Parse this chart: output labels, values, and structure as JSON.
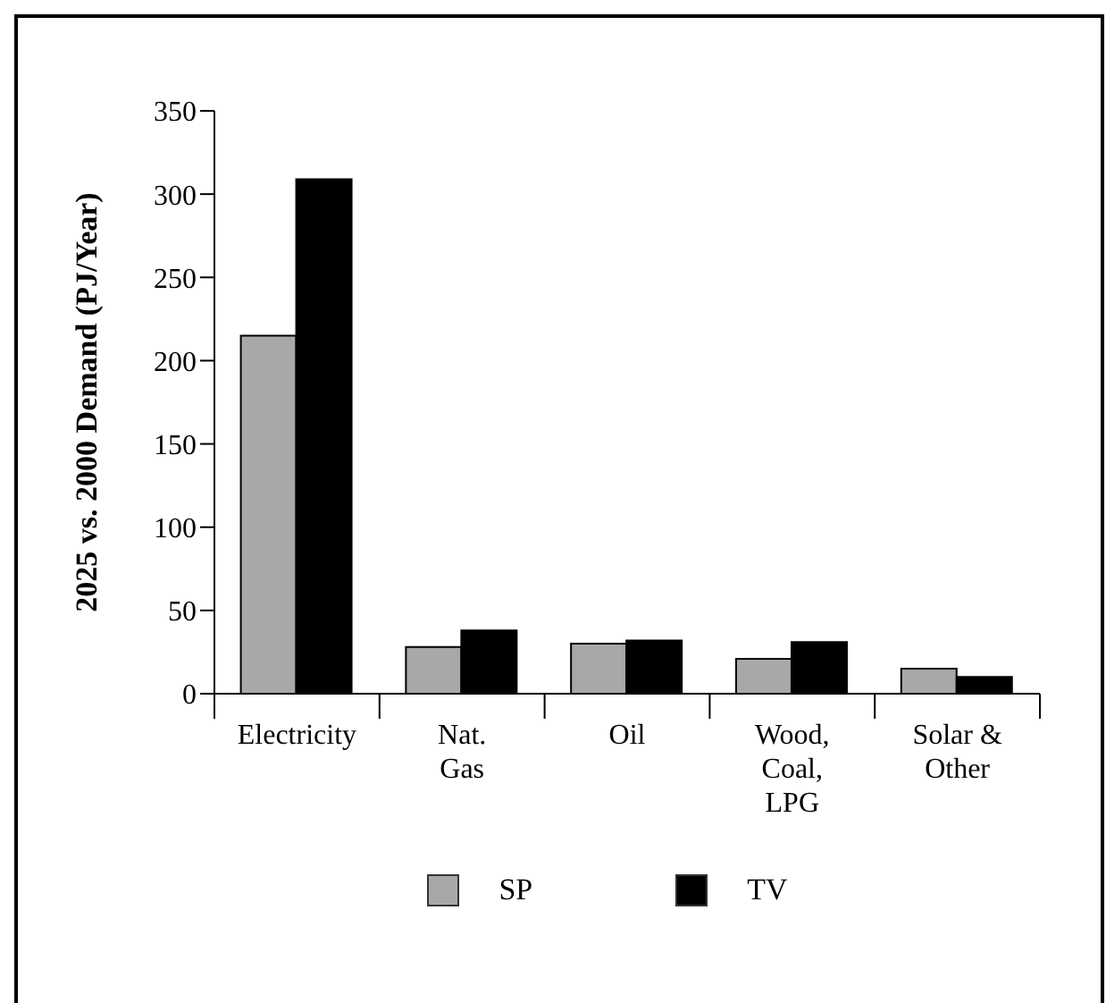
{
  "chart_data": {
    "type": "bar",
    "ylabel": "2025 vs. 2000 Demand (PJ/Year)",
    "categories": [
      "Electricity",
      "Nat. Gas",
      "Oil",
      "Wood, Coal, LPG",
      "Solar & Other"
    ],
    "series": [
      {
        "name": "SP",
        "color": "#a8a8a8",
        "values": [
          215,
          28,
          30,
          21,
          15
        ]
      },
      {
        "name": "TV",
        "color": "#000000",
        "values": [
          309,
          38,
          32,
          31,
          10
        ]
      }
    ],
    "ylim": [
      0,
      350
    ],
    "yticks": [
      0,
      50,
      100,
      150,
      200,
      250,
      300,
      350
    ],
    "legend": "bottom"
  }
}
